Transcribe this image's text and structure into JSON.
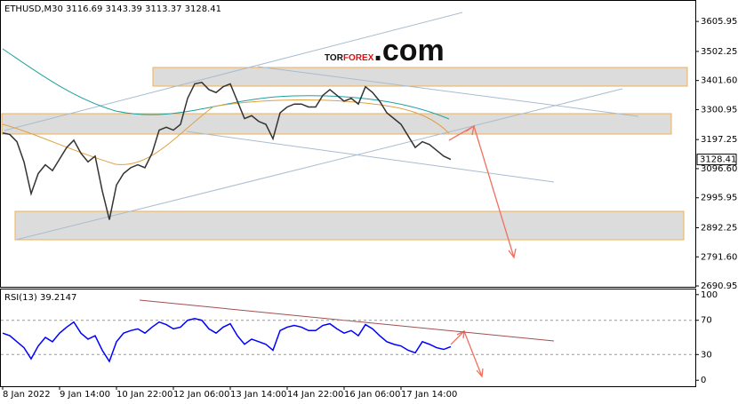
{
  "logo": {
    "parts": [
      "TOR",
      "FOREX",
      ".com"
    ]
  },
  "chart_data": [
    {
      "type": "line",
      "title": "ETHUSD,M30 3116.69 3143.39 3113.37 3128.41",
      "categories": [
        "8 Jan 2022",
        null,
        null,
        null,
        null,
        null,
        null,
        null,
        "9 Jan 14:00",
        null,
        null,
        null,
        null,
        null,
        null,
        null,
        "10 Jan 22:00",
        null,
        null,
        null,
        null,
        null,
        null,
        null,
        "12 Jan 06:00",
        null,
        null,
        null,
        null,
        null,
        null,
        null,
        "13 Jan 14:00",
        null,
        null,
        null,
        null,
        null,
        null,
        null,
        "14 Jan 22:00",
        null,
        null,
        null,
        null,
        null,
        null,
        null,
        "16 Jan 06:00",
        null,
        null,
        null,
        null,
        null,
        null,
        null,
        "17 Jan 14:00",
        null,
        null,
        null,
        null,
        null,
        null,
        null
      ],
      "series": [
        {
          "name": "ETHUSD",
          "color": "#333333",
          "values": [
            3220,
            3215,
            3190,
            3120,
            3010,
            3080,
            3110,
            3090,
            3130,
            3170,
            3195,
            3150,
            3120,
            3140,
            3020,
            2920,
            3040,
            3080,
            3100,
            3110,
            3100,
            3150,
            3230,
            3240,
            3230,
            3250,
            3340,
            3390,
            3395,
            3370,
            3360,
            3380,
            3390,
            3330,
            3270,
            3280,
            3260,
            3250,
            3200,
            3290,
            3310,
            3320,
            3320,
            3310,
            3310,
            3350,
            3370,
            3350,
            3330,
            3340,
            3320,
            3380,
            3360,
            3330,
            3290,
            3270,
            3250,
            3210,
            3170,
            3190,
            3180,
            3160,
            3140,
            3128.41
          ]
        }
      ],
      "last_price": 3128.41,
      "ylim": [
        2688,
        3677
      ],
      "yticks": [
        2690.95,
        {
          "value": 2791.6,
          "label": "2791.60"
        },
        2892.25,
        2995.95,
        {
          "value": 3096.6,
          "label": "3096.60"
        },
        3197.25,
        3300.95,
        {
          "value": 3401.6,
          "label": "3401.60"
        },
        3502.25,
        3605.95
      ]
    },
    {
      "type": "line",
      "title": "RSI(13) 39.2147",
      "series": [
        {
          "name": "RSI(13)",
          "color": "#0000ff",
          "values": [
            55,
            52,
            45,
            38,
            25,
            40,
            50,
            45,
            55,
            62,
            68,
            55,
            48,
            52,
            35,
            22,
            45,
            55,
            58,
            60,
            55,
            62,
            68,
            65,
            60,
            62,
            70,
            72,
            70,
            60,
            55,
            62,
            66,
            52,
            42,
            48,
            45,
            42,
            35,
            58,
            62,
            64,
            62,
            58,
            58,
            64,
            66,
            60,
            55,
            58,
            52,
            65,
            60,
            52,
            45,
            42,
            40,
            35,
            32,
            45,
            42,
            38,
            36,
            39.2147
          ]
        }
      ],
      "ylim": [
        -7,
        106
      ],
      "yticks": [
        0,
        30,
        70,
        100
      ],
      "grid_ticks": [
        30,
        70
      ]
    }
  ]
}
